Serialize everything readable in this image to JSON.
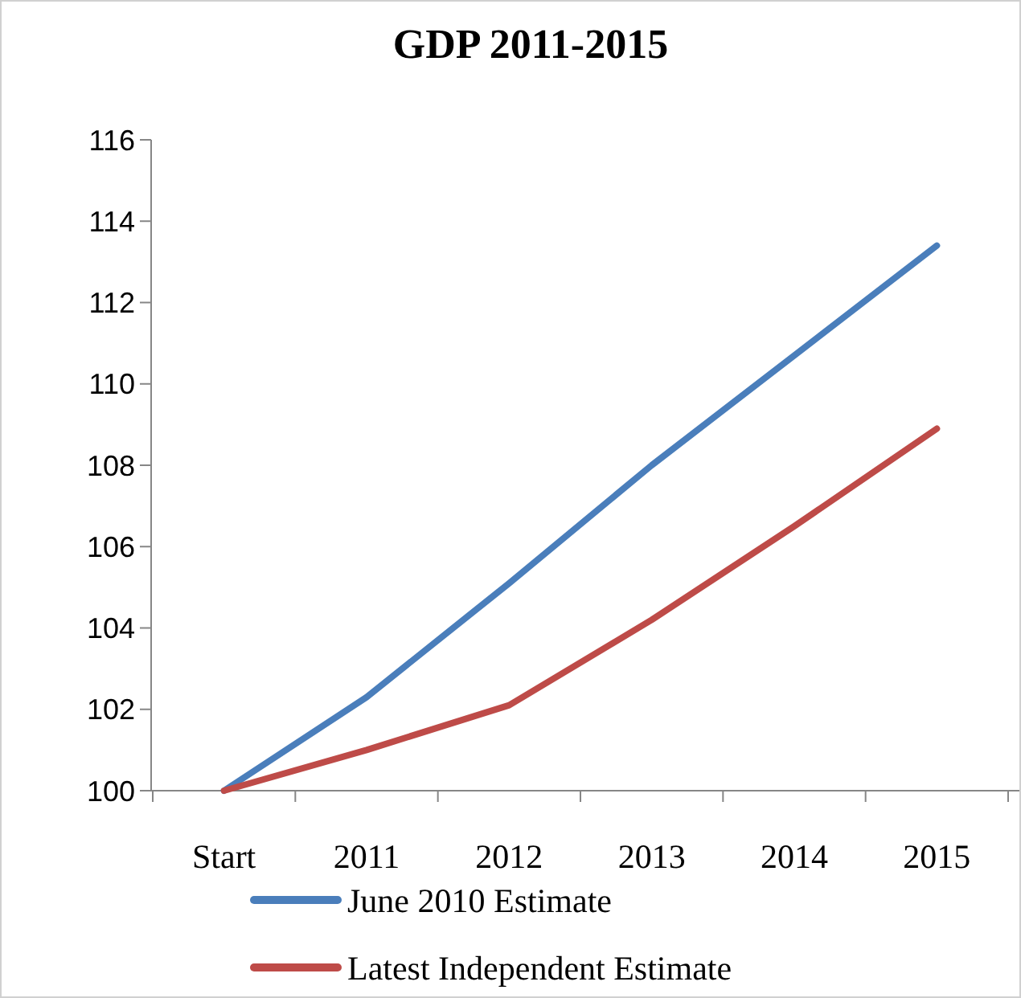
{
  "chart_data": {
    "type": "line",
    "title": "GDP 2011-2015",
    "categories": [
      "Start",
      "2011",
      "2012",
      "2013",
      "2014",
      "2015"
    ],
    "series": [
      {
        "name": "June 2010 Estimate",
        "color": "#4a7ebb",
        "values": [
          100,
          102.3,
          105.1,
          108.0,
          110.7,
          113.4
        ]
      },
      {
        "name": "Latest Independent Estimate",
        "color": "#be4b48",
        "values": [
          100,
          101.0,
          102.1,
          104.2,
          106.5,
          108.9
        ]
      }
    ],
    "ylim": [
      100,
      116
    ],
    "yticks": [
      100,
      102,
      104,
      106,
      108,
      110,
      112,
      114,
      116
    ],
    "grid": false,
    "legend": "bottom",
    "marker": "none",
    "line_style": "solid"
  }
}
